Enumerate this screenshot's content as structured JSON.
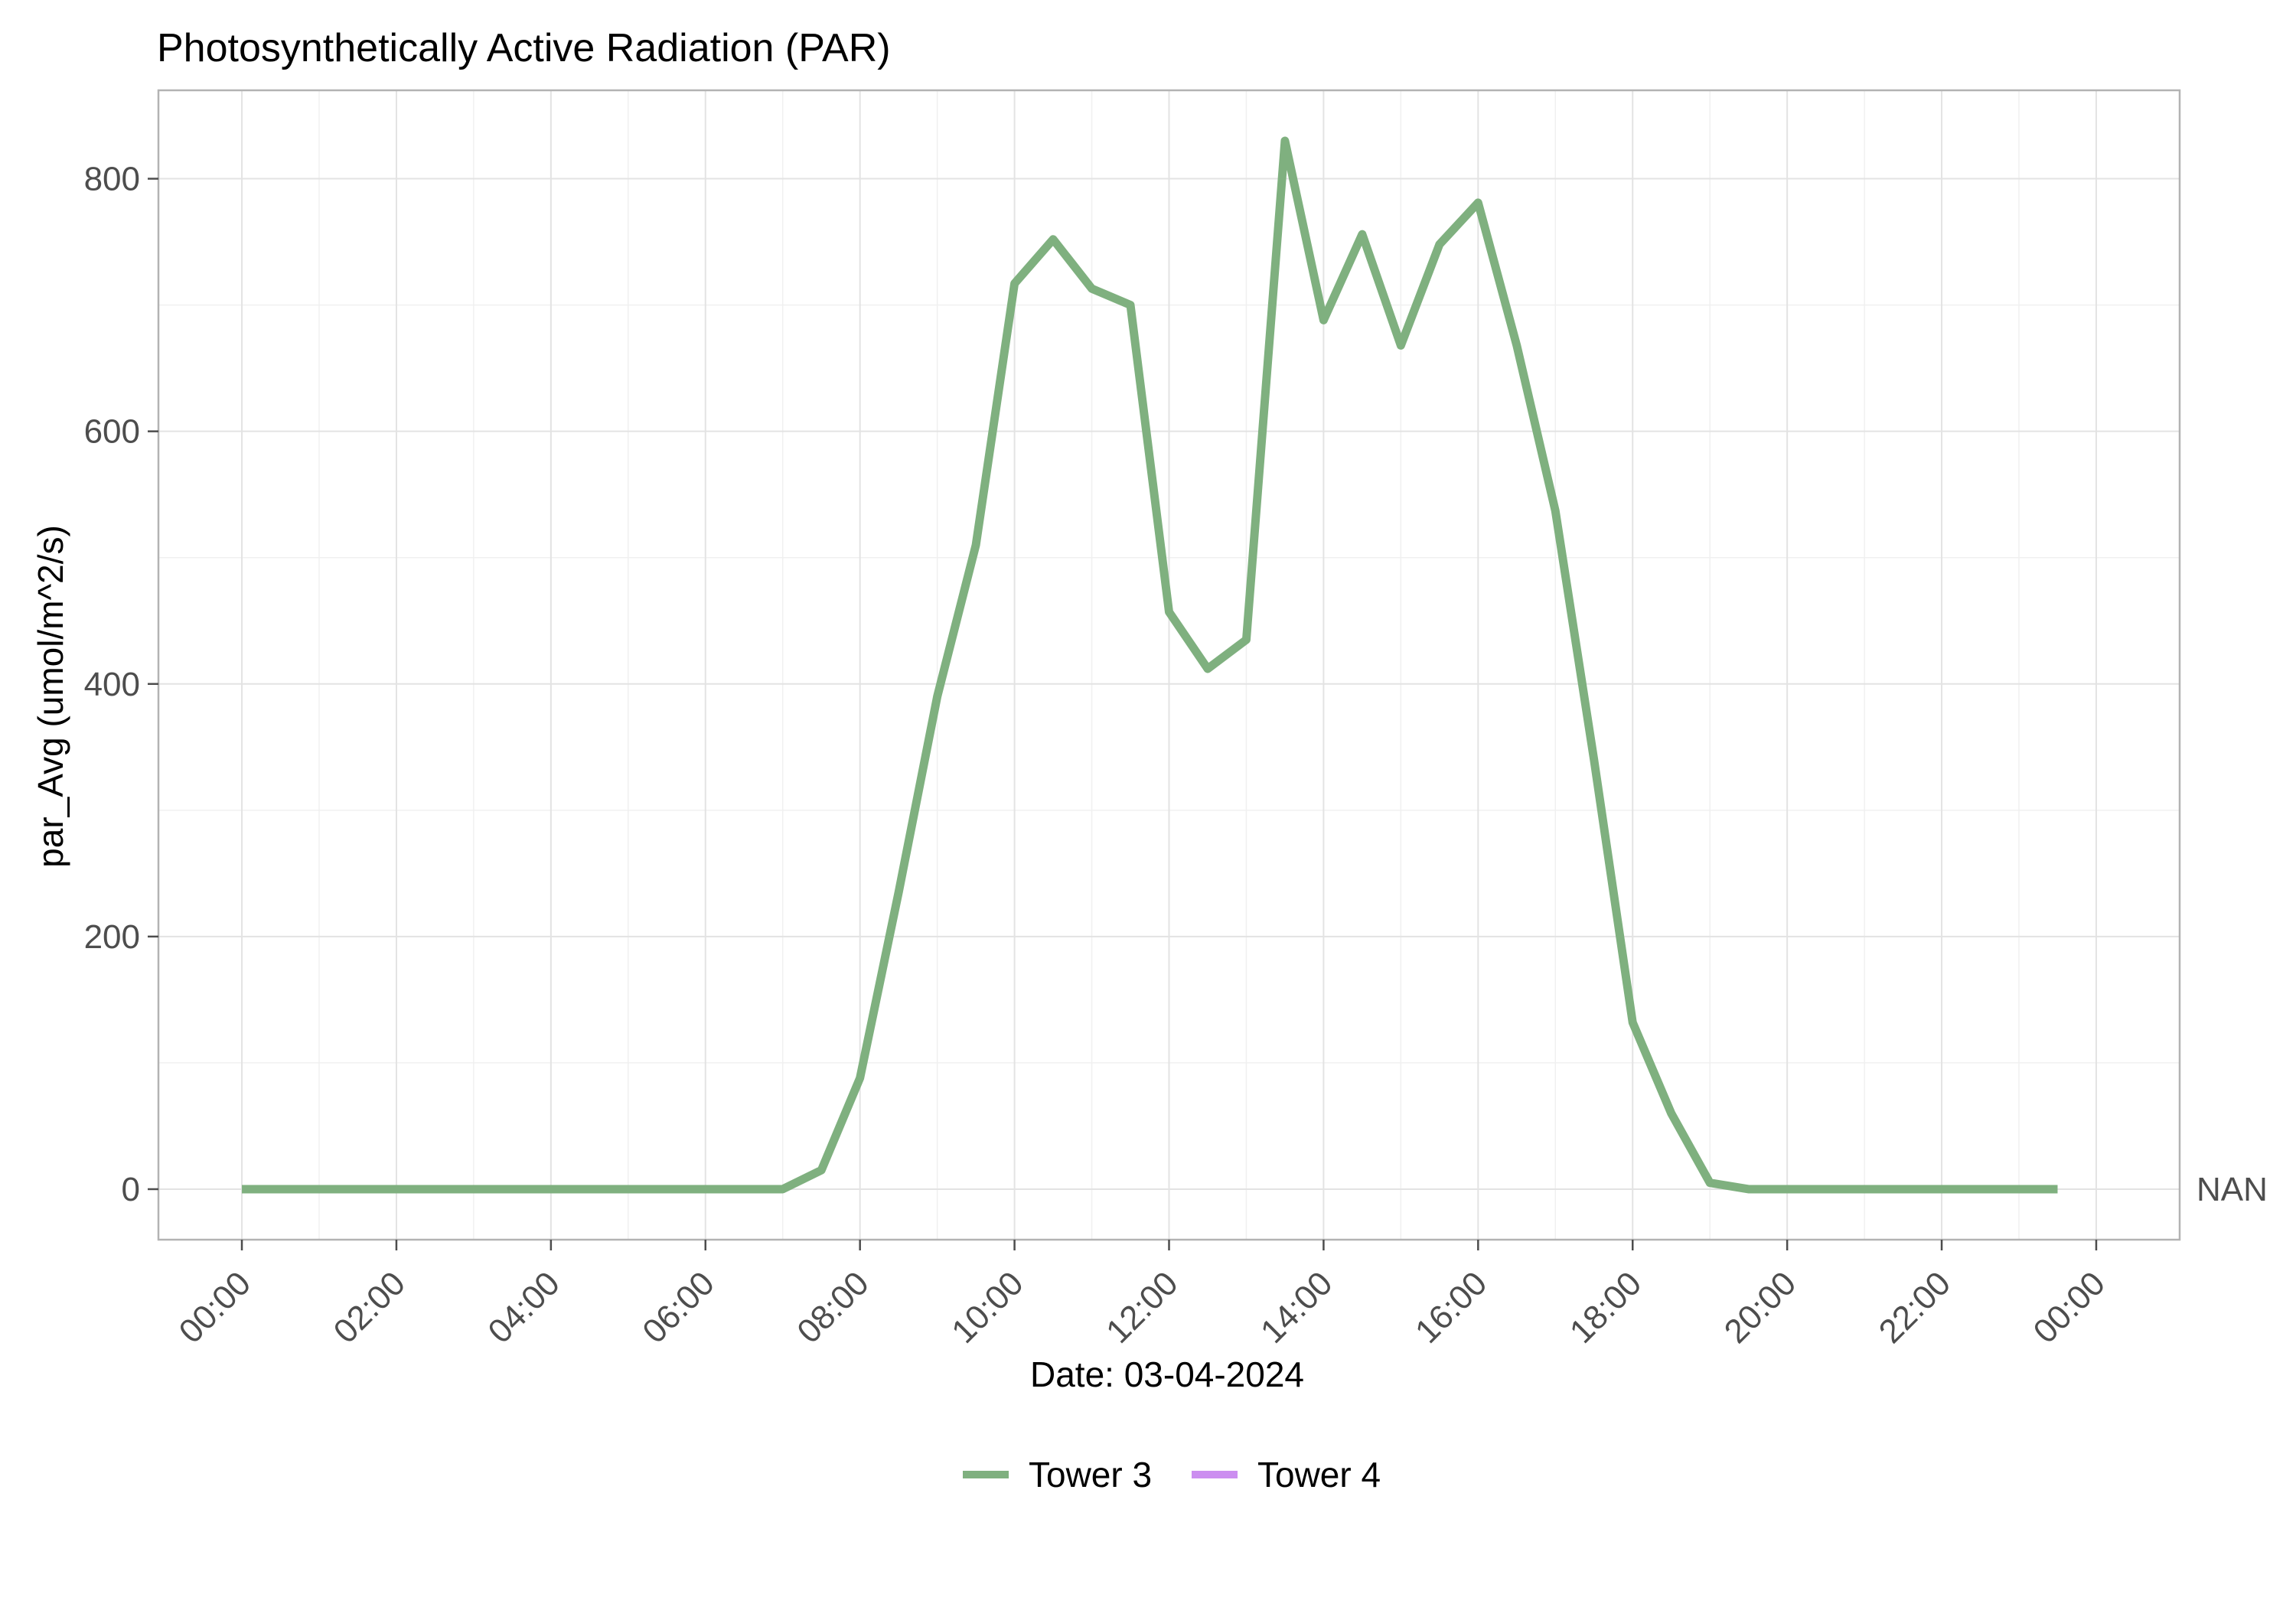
{
  "chart_data": {
    "type": "line",
    "title": "Photosynthetically Active Radiation (PAR)",
    "xlabel": "Date: 03-04-2024",
    "ylabel": "par_Avg (umol/m^2/s)",
    "xlim": [
      "00:00",
      "24:00"
    ],
    "ylim": [
      -40,
      870
    ],
    "x_ticks": [
      "00:00",
      "02:00",
      "04:00",
      "06:00",
      "08:00",
      "10:00",
      "12:00",
      "14:00",
      "16:00",
      "18:00",
      "20:00",
      "22:00",
      "00:00"
    ],
    "y_ticks": [
      0,
      200,
      400,
      600,
      800
    ],
    "secondary_y_label": "NAN",
    "grid": true,
    "legend_position": "bottom",
    "series": [
      {
        "name": "Tower 3",
        "color": "#7fb07f",
        "x": [
          "00:00",
          "00:30",
          "01:00",
          "01:30",
          "02:00",
          "02:30",
          "03:00",
          "03:30",
          "04:00",
          "04:30",
          "05:00",
          "05:30",
          "06:00",
          "06:30",
          "07:00",
          "07:30",
          "08:00",
          "08:30",
          "09:00",
          "09:30",
          "10:00",
          "10:30",
          "11:00",
          "11:30",
          "12:00",
          "12:30",
          "13:00",
          "13:30",
          "14:00",
          "14:30",
          "15:00",
          "15:30",
          "16:00",
          "16:30",
          "17:00",
          "17:30",
          "18:00",
          "18:30",
          "19:00",
          "19:30",
          "20:00",
          "20:30",
          "21:00",
          "21:30",
          "22:00",
          "22:30",
          "23:00",
          "23:30"
        ],
        "values": [
          0,
          0,
          0,
          0,
          0,
          0,
          0,
          0,
          0,
          0,
          0,
          0,
          0,
          0,
          0,
          15,
          88,
          235,
          390,
          510,
          717,
          752,
          713,
          700,
          457,
          412,
          435,
          830,
          688,
          756,
          668,
          748,
          781,
          668,
          537,
          340,
          132,
          60,
          5,
          0,
          0,
          0,
          0,
          0,
          0,
          0,
          0,
          0
        ]
      },
      {
        "name": "Tower 4",
        "color": "#cc8ef0",
        "x": [],
        "values": []
      }
    ]
  }
}
